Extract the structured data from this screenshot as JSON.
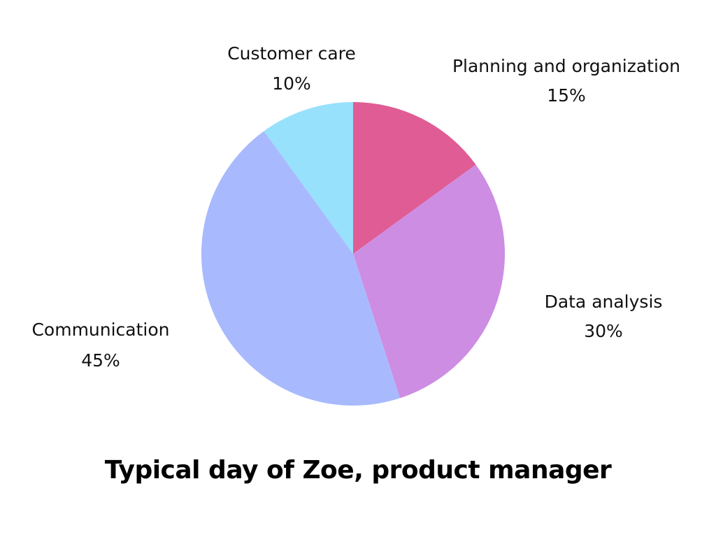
{
  "chart_data": {
    "type": "pie",
    "title": "Typical day of Zoe, product manager",
    "start_angle_deg": 0,
    "direction": "clockwise",
    "slices": [
      {
        "label": "Planning and organization",
        "value": 15,
        "value_label": "15%",
        "color": "#e05c94"
      },
      {
        "label": "Data analysis",
        "value": 30,
        "value_label": "30%",
        "color": "#cd8de3"
      },
      {
        "label": "Communication",
        "value": 45,
        "value_label": "45%",
        "color": "#a8bafd"
      },
      {
        "label": "Customer care",
        "value": 10,
        "value_label": "10%",
        "color": "#97e1fd"
      }
    ]
  }
}
